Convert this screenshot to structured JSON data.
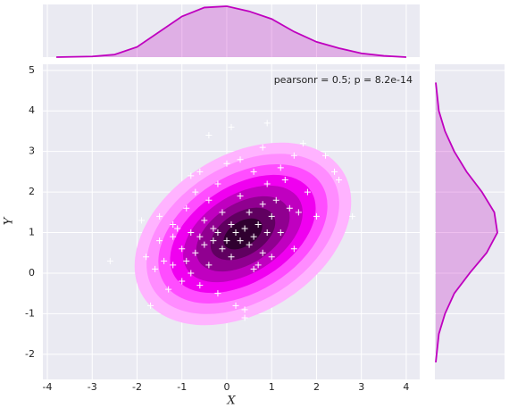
{
  "chart_data": {
    "type": "scatter",
    "annotation": "pearsonr = 0.5; p = 8.2e-14",
    "xlabel": "X",
    "ylabel": "Y",
    "x": [
      -2.6,
      -1.9,
      -1.8,
      -1.6,
      -1.5,
      -1.4,
      -1.3,
      -1.2,
      -1.2,
      -1.1,
      -1.0,
      -1.0,
      -0.9,
      -0.9,
      -0.8,
      -0.8,
      -0.7,
      -0.7,
      -0.6,
      -0.6,
      -0.5,
      -0.5,
      -0.4,
      -0.4,
      -0.3,
      -0.3,
      -0.2,
      -0.2,
      -0.1,
      -0.1,
      0.0,
      0.0,
      0.1,
      0.1,
      0.2,
      0.2,
      0.3,
      0.3,
      0.4,
      0.4,
      0.5,
      0.5,
      0.6,
      0.6,
      0.7,
      0.7,
      0.8,
      0.8,
      0.9,
      0.9,
      1.0,
      1.0,
      1.1,
      1.2,
      1.3,
      1.4,
      1.5,
      1.6,
      1.8,
      2.0,
      2.2,
      2.5,
      2.8,
      -1.7,
      -1.2,
      -0.4,
      0.3,
      0.8,
      -0.2,
      0.6,
      1.2,
      -0.8,
      0.1,
      1.7,
      0.4,
      -1.5,
      2.4,
      -0.6,
      0.9,
      1.5
    ],
    "y": [
      0.3,
      1.3,
      0.4,
      0.1,
      1.4,
      0.3,
      -0.4,
      0.9,
      0.2,
      1.1,
      0.6,
      -0.2,
      0.3,
      1.6,
      0.0,
      1.0,
      2.0,
      0.5,
      0.9,
      2.5,
      0.7,
      1.3,
      0.2,
      1.8,
      1.1,
      0.8,
      2.2,
      1.0,
      0.6,
      1.5,
      0.8,
      2.7,
      1.2,
      0.4,
      1.0,
      -0.8,
      0.8,
      1.9,
      1.1,
      -1.1,
      0.7,
      1.5,
      2.5,
      0.9,
      1.2,
      0.2,
      1.7,
      0.5,
      1.0,
      2.2,
      0.4,
      1.4,
      1.8,
      1.0,
      2.3,
      1.6,
      2.9,
      1.5,
      2.0,
      1.4,
      2.9,
      2.3,
      1.4,
      -0.8,
      1.2,
      3.4,
      2.8,
      3.1,
      -0.5,
      0.1,
      2.6,
      2.4,
      3.6,
      3.2,
      -0.9,
      0.8,
      2.5,
      -0.3,
      3.7,
      0.6
    ],
    "marker_color": "#ffffff",
    "marginal_color": "#bf00bf",
    "marginal_x": {
      "x": [
        -3.8,
        -3,
        -2.5,
        -2,
        -1.5,
        -1,
        -0.5,
        0,
        0.5,
        1,
        1.5,
        2,
        2.5,
        3,
        3.5,
        4
      ],
      "values": [
        0,
        0.005,
        0.02,
        0.08,
        0.2,
        0.32,
        0.39,
        0.4,
        0.36,
        0.3,
        0.2,
        0.12,
        0.07,
        0.03,
        0.01,
        0
      ]
    },
    "marginal_y": {
      "y": [
        -2.2,
        -1.5,
        -1,
        -0.5,
        0,
        0.5,
        1,
        1.5,
        2,
        2.5,
        3,
        3.5,
        4,
        4.7
      ],
      "values": [
        0,
        0.02,
        0.06,
        0.12,
        0.22,
        0.33,
        0.4,
        0.38,
        0.3,
        0.2,
        0.12,
        0.06,
        0.02,
        0
      ]
    },
    "xlim": [
      -4.1,
      4.3
    ],
    "ylim": [
      -2.62,
      5.15
    ],
    "xticks": [
      -4,
      -3,
      -2,
      -1,
      0,
      1,
      2,
      3,
      4
    ],
    "yticks": [
      -2,
      -1,
      0,
      1,
      2,
      3,
      4,
      5
    ],
    "grid": true
  }
}
